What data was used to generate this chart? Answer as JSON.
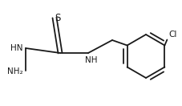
{
  "bg_color": "#ffffff",
  "line_color": "#1a1a1a",
  "text_color": "#1a1a1a",
  "line_width": 1.3,
  "font_size": 7.5,
  "figsize": [
    2.28,
    1.32
  ],
  "dpi": 100,
  "xlim": [
    0,
    228
  ],
  "ylim": [
    0,
    132
  ]
}
